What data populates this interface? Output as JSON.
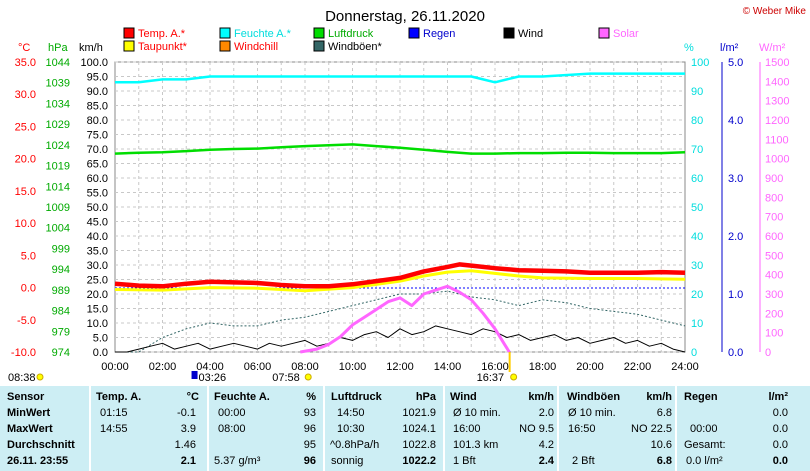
{
  "title": "Donnerstag, 26.11.2020",
  "credit": "© Weber Mike",
  "colors": {
    "temp": "#ff0000",
    "humidity": "#00ffff",
    "pressure": "#00dd00",
    "rain": "#0000ff",
    "wind": "#000000",
    "solar": "#ff66ff",
    "dewpoint": "#ffff00",
    "windchill": "#ff8800",
    "gust": "#336666",
    "axis_temp": "#ff0000",
    "axis_pressure": "#00aa00",
    "axis_humidity": "#00dddd",
    "axis_rain": "#0000cc",
    "axis_solar": "#ff66ff",
    "stats_bg": "#cdeef4"
  },
  "legend": [
    {
      "label": "Temp. A.*",
      "color": "#ff0000",
      "text_color": "#ff0000"
    },
    {
      "label": "Feuchte A.*",
      "color": "#00ffff",
      "text_color": "#00dddd"
    },
    {
      "label": "Luftdruck",
      "color": "#00dd00",
      "text_color": "#00aa00"
    },
    {
      "label": "Regen",
      "color": "#0000ff",
      "text_color": "#0000cc"
    },
    {
      "label": "Wind",
      "color": "#000000",
      "text_color": "#000000"
    },
    {
      "label": "Solar",
      "color": "#ff66ff",
      "text_color": "#ff66ff"
    },
    {
      "label": "Taupunkt*",
      "color": "#ffff00",
      "text_color": "#ff0000"
    },
    {
      "label": "Windchill",
      "color": "#ff8800",
      "text_color": "#ff0000"
    },
    {
      "label": "Windböen*",
      "color": "#336666",
      "text_color": "#000000"
    }
  ],
  "chart_data": {
    "type": "line",
    "x_labels": [
      "00:00",
      "02:00",
      "04:00",
      "06:00",
      "08:00",
      "10:00",
      "12:00",
      "14:00",
      "16:00",
      "18:00",
      "20:00",
      "22:00",
      "24:00"
    ],
    "x_unit": "hour",
    "axes": {
      "temp": {
        "unit": "°C",
        "min": -10,
        "max": 35,
        "ticks": [
          "35.0",
          "30.0",
          "25.0",
          "20.0",
          "15.0",
          "10.0",
          "5.0",
          "0.0",
          "-5.0",
          "-10.0"
        ]
      },
      "pressure": {
        "unit": "hPa",
        "min": 974,
        "max": 1044,
        "ticks": [
          "1044",
          "1039",
          "1034",
          "1029",
          "1024",
          "1019",
          "1014",
          "1009",
          "1004",
          "999",
          "994",
          "989",
          "984",
          "979",
          "974"
        ]
      },
      "wind": {
        "unit": "km/h",
        "min": 0,
        "max": 100,
        "ticks": [
          "100.0",
          "95.0",
          "90.0",
          "85.0",
          "80.0",
          "75.0",
          "70.0",
          "65.0",
          "60.0",
          "55.0",
          "50.0",
          "45.0",
          "40.0",
          "35.0",
          "30.0",
          "25.0",
          "20.0",
          "15.0",
          "10.0",
          "5.0",
          "0.0"
        ]
      },
      "humidity": {
        "unit": "%",
        "min": 0,
        "max": 100,
        "ticks": [
          "100",
          "90",
          "80",
          "70",
          "60",
          "50",
          "40",
          "30",
          "20",
          "10",
          "0"
        ]
      },
      "rain": {
        "unit": "l/m²",
        "min": 0,
        "max": 5,
        "ticks": [
          "5.0",
          "4.0",
          "3.0",
          "2.0",
          "1.0",
          "0.0"
        ]
      },
      "solar": {
        "unit": "W/m²",
        "min": 0,
        "max": 1500,
        "ticks": [
          "1500",
          "1400",
          "1300",
          "1200",
          "1100",
          "1000",
          "900",
          "800",
          "700",
          "600",
          "500",
          "400",
          "300",
          "200",
          "100",
          "0"
        ]
      }
    },
    "series": [
      {
        "name": "Temp. A.*",
        "axis": "temp",
        "x": [
          0,
          1,
          2,
          3,
          4,
          5,
          6,
          7,
          8,
          9,
          10,
          11,
          12,
          13,
          14,
          14.5,
          15,
          16,
          17,
          18,
          19,
          20,
          21,
          22,
          23,
          24
        ],
        "y": [
          0.6,
          0.3,
          0.2,
          0.6,
          0.9,
          0.8,
          0.7,
          0.4,
          0.2,
          0.2,
          0.5,
          1.0,
          1.5,
          2.5,
          3.2,
          3.6,
          3.4,
          3.0,
          2.7,
          2.6,
          2.5,
          2.3,
          2.3,
          2.3,
          2.4,
          2.3
        ]
      },
      {
        "name": "Taupunkt*",
        "axis": "temp",
        "x": [
          0,
          2,
          4,
          6,
          8,
          10,
          12,
          13,
          14,
          15,
          16,
          17,
          18,
          20,
          22,
          24
        ],
        "y": [
          -0.3,
          -0.4,
          0.0,
          -0.1,
          -0.5,
          0.0,
          1.0,
          1.8,
          2.4,
          2.6,
          2.2,
          1.8,
          1.5,
          1.4,
          1.4,
          1.3
        ]
      },
      {
        "name": "Feuchte A.*",
        "axis": "humidity",
        "x": [
          0,
          1,
          2,
          3,
          4,
          6,
          8,
          10,
          12,
          14,
          15,
          15.5,
          16,
          16.5,
          17,
          18,
          20,
          22,
          23,
          24
        ],
        "y": [
          93,
          93,
          94,
          94,
          95,
          95,
          95,
          95,
          95,
          95,
          95,
          94,
          93,
          94,
          95,
          95,
          96,
          96,
          96,
          96
        ]
      },
      {
        "name": "Luftdruck",
        "axis": "pressure",
        "x": [
          0,
          1,
          2,
          3,
          4,
          5,
          6,
          7,
          8,
          9,
          10,
          11,
          12,
          13,
          14,
          15,
          16,
          17,
          18,
          19,
          20,
          21,
          22,
          23,
          24
        ],
        "y": [
          1021.9,
          1022.1,
          1022.2,
          1022.5,
          1022.8,
          1023.0,
          1023.1,
          1023.4,
          1023.7,
          1023.9,
          1024.1,
          1023.7,
          1023.3,
          1022.8,
          1022.3,
          1021.9,
          1021.9,
          1022.0,
          1022.0,
          1022.1,
          1022.1,
          1022.0,
          1022.0,
          1022.0,
          1022.2
        ]
      },
      {
        "name": "Wind",
        "axis": "wind",
        "x": [
          0,
          0.5,
          1,
          1.5,
          2,
          2.5,
          3,
          3.5,
          4,
          4.5,
          5,
          5.5,
          6,
          6.5,
          7,
          7.5,
          8,
          8.5,
          9,
          9.5,
          10,
          10.5,
          11,
          11.5,
          12,
          12.5,
          13,
          13.5,
          14,
          14.5,
          15,
          15.5,
          16,
          16.5,
          17,
          17.5,
          18,
          18.5,
          19,
          19.5,
          20,
          20.5,
          21,
          21.5,
          22,
          22.5,
          23,
          23.5,
          24
        ],
        "y": [
          0,
          0,
          1,
          2,
          3,
          1,
          2,
          3,
          1,
          2,
          3,
          2,
          1,
          3,
          2,
          3,
          4,
          2,
          3,
          5,
          4,
          6,
          7,
          5,
          8,
          6,
          7,
          9,
          8,
          7,
          6,
          8,
          7,
          5,
          6,
          4,
          5,
          6,
          4,
          5,
          3,
          4,
          5,
          3,
          4,
          2,
          3,
          1,
          0
        ]
      },
      {
        "name": "Windböen*",
        "axis": "wind",
        "x": [
          0,
          1,
          2,
          3,
          4,
          5,
          6,
          7,
          8,
          9,
          10,
          11,
          12,
          13,
          14,
          15,
          16,
          17,
          18,
          19,
          20,
          21,
          22,
          23,
          24
        ],
        "y": [
          0,
          0,
          5,
          8,
          10,
          9,
          9,
          11,
          12,
          14,
          16,
          18,
          20,
          20,
          21,
          19,
          18,
          16,
          18,
          17,
          15,
          14,
          13,
          11,
          9
        ]
      },
      {
        "name": "Solar",
        "axis": "solar",
        "x": [
          7.8,
          8.5,
          9,
          9.5,
          10,
          10.5,
          11,
          11.5,
          12,
          12.5,
          13,
          13.5,
          14,
          14.5,
          15,
          15.5,
          16,
          16.4,
          16.6
        ],
        "y": [
          0,
          15,
          40,
          80,
          140,
          180,
          220,
          260,
          280,
          240,
          300,
          320,
          340,
          310,
          270,
          200,
          120,
          40,
          0
        ]
      }
    ],
    "grid": true,
    "markers": {
      "sunrise": "08:38",
      "sunset": "16:37",
      "moonrise": "03:26",
      "moonset": "07:58",
      "start_time": "08:38"
    }
  },
  "stats": {
    "headers": [
      "Sensor",
      "Temp. A.",
      "°C",
      "Feuchte A.",
      "%",
      "Luftdruck",
      "hPa",
      "Wind",
      "km/h",
      "Windböen",
      "km/h",
      "Regen",
      "l/m²"
    ],
    "min": {
      "label": "MinWert",
      "temp_time": "01:15",
      "temp": "-0.1",
      "hum_time": "00:00",
      "hum": "93",
      "press_time": "14:50",
      "press": "1021.9",
      "wind_info": "Ø 10 min.",
      "wind": "2.0",
      "gust_info": "Ø 10 min.",
      "gust": "6.8",
      "rain_info": "",
      "rain": "0.0"
    },
    "max": {
      "label": "MaxWert",
      "temp_time": "14:55",
      "temp": "3.9",
      "hum_time": "08:00",
      "hum": "96",
      "press_time": "10:30",
      "press": "1024.1",
      "wind_time": "16:00",
      "wind_dir": "NO 9.5",
      "gust_time": "16:50",
      "gust_dir": "NO 22.5",
      "rain_time": "00:00",
      "rain": "0.0"
    },
    "avg": {
      "label": "Durchschnitt",
      "temp": "1.46",
      "hum": "95",
      "press_time": "^0.8hPa/h",
      "press": "1022.8",
      "wind_dist": "101.3 km",
      "wind": "4.2",
      "gust": "10.6",
      "rain_info": "Gesamt:",
      "rain": "0.0"
    },
    "current": {
      "label": "26.11. 23:55",
      "temp": "2.1",
      "abs_hum": "5.37 g/m³",
      "hum": "96",
      "press_trend": "sonnig",
      "press": "1022.2",
      "wind_bft": "1 Bft",
      "wind": "2.4",
      "gust_bft": "2 Bft",
      "gust": "6.8",
      "rain_rate": "0.0 l/m²",
      "rain": "0.0"
    }
  }
}
